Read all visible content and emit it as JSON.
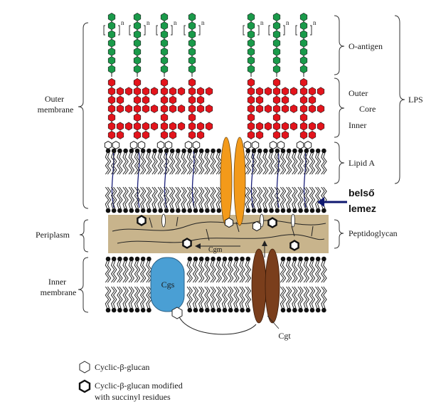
{
  "labels": {
    "outer_membrane": [
      "Outer",
      "membrane"
    ],
    "periplasm": "Periplasm",
    "inner_membrane": [
      "Inner",
      "membrane"
    ],
    "o_antigen": "O-antigen",
    "outer_core": "Outer",
    "core": "Core",
    "inner_core": "Inner",
    "lps": "LPS",
    "lipid_a": "Lipid A",
    "belso": "belső",
    "lemez": "lemez",
    "peptidoglycan": "Peptidoglycan",
    "cgm": "Cgm",
    "cgs": "Cgs",
    "cgt": "Cgt",
    "repeat_n": "n"
  },
  "legend": {
    "item1": "Cyclic-β-glucan",
    "item2_line1": "Cyclic-β-glucan modified",
    "item2_line2": "with succinyl residues"
  },
  "colors": {
    "o_antigen_green": "#1a9a4a",
    "core_red": "#e3141c",
    "peptidoglycan_tan": "#c8b48c",
    "cgs_blue": "#4a9fd4",
    "cgt_brown": "#7a3e1c",
    "channel_orange": "#f39a1a",
    "arrow_navy": "#0f1870"
  }
}
